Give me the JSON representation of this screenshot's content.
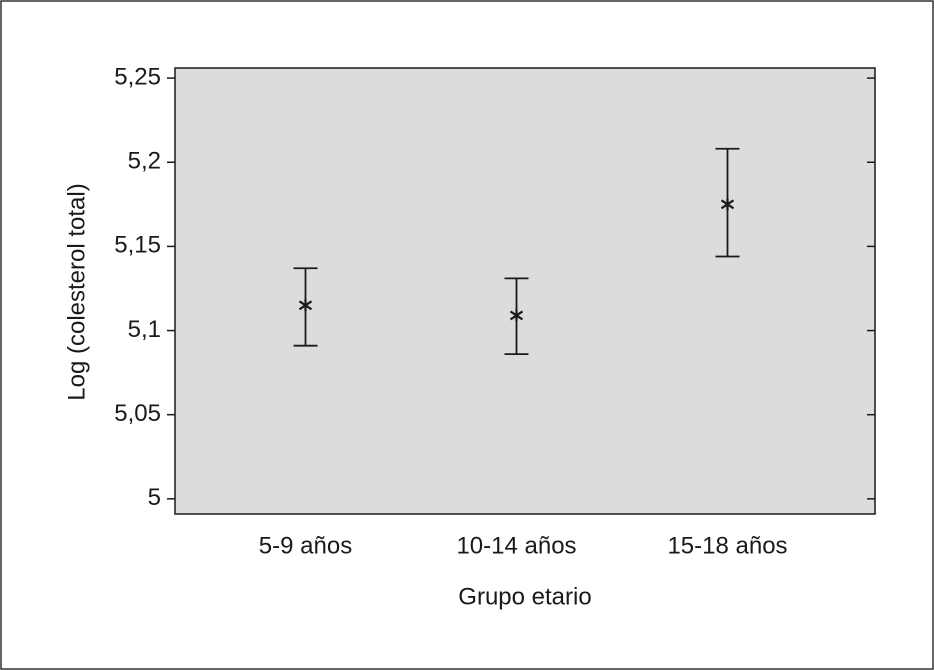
{
  "chart_data": {
    "type": "errorbar",
    "x_label": "Grupo etario",
    "y_label": "Log (colesterol total)",
    "categories": [
      "5-9 años",
      "10-14 años",
      "15-18 años"
    ],
    "values": [
      5.115,
      5.109,
      5.175
    ],
    "lower": [
      5.091,
      5.086,
      5.144
    ],
    "upper": [
      5.137,
      5.131,
      5.208
    ],
    "ylim": [
      4.991,
      5.256
    ],
    "yticks": [
      5,
      {
        "value": 5.05,
        "label": "5,05"
      },
      {
        "value": 5.1,
        "label": "5,1"
      },
      {
        "value": 5.15,
        "label": "5,15"
      },
      {
        "value": 5.2,
        "label": "5,2"
      },
      {
        "value": 5.25,
        "label": "5,25"
      }
    ],
    "color": "#1a1a1a",
    "plot_background": "#dcdcdc"
  }
}
